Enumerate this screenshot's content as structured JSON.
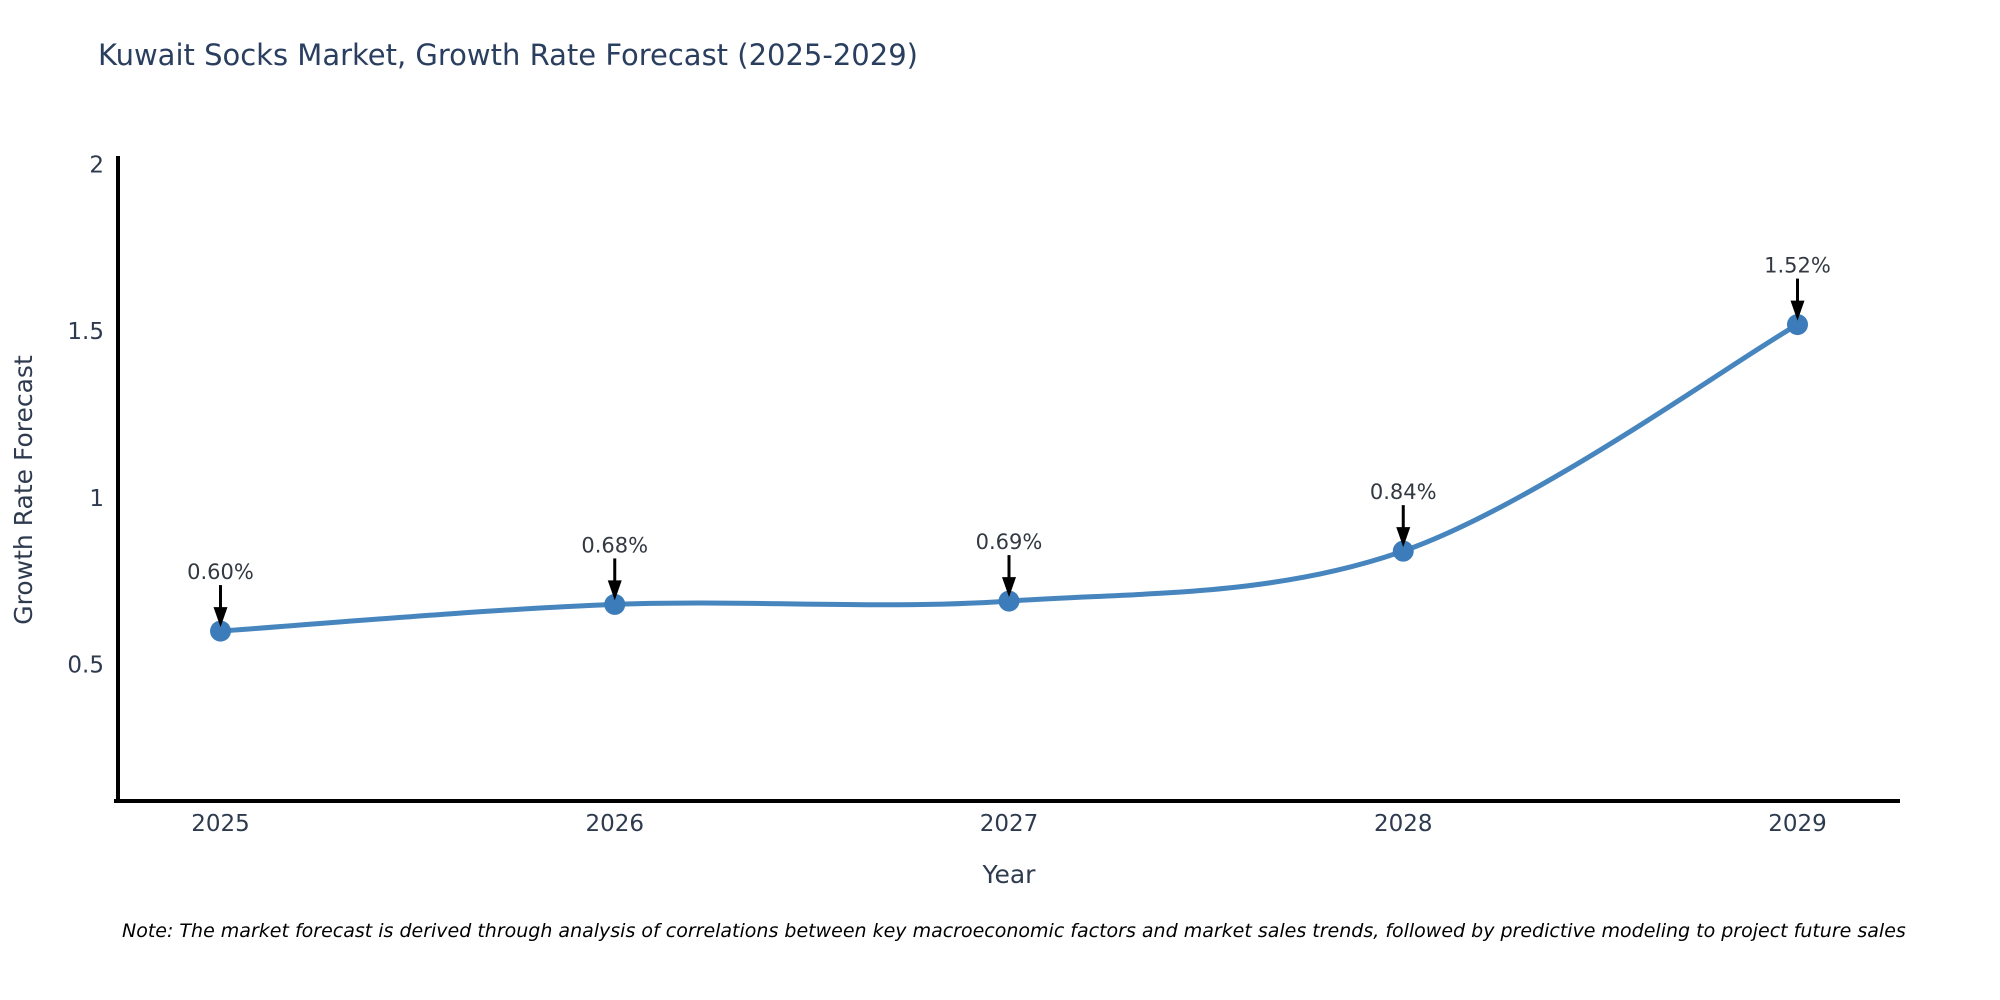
{
  "title": "Kuwait Socks Market, Growth Rate Forecast (2025-2029)",
  "note": "Note: The market forecast is derived through analysis of correlations between key macroeconomic factors and market sales trends, followed by predictive modeling to project future sales",
  "chart_data": {
    "type": "line",
    "line_shape": "spline",
    "x": [
      2025,
      2026,
      2027,
      2028,
      2029
    ],
    "x_tick_labels": [
      "2025",
      "2026",
      "2027",
      "2028",
      "2029"
    ],
    "series": [
      {
        "name": "Growth Rate Forecast",
        "values": [
          0.6,
          0.68,
          0.69,
          0.84,
          1.52
        ]
      }
    ],
    "point_labels": [
      "0.60%",
      "0.68%",
      "0.69%",
      "0.84%",
      "1.52%"
    ],
    "title": "Kuwait Socks Market, Growth Rate Forecast (2025-2029)",
    "xlabel": "Year",
    "ylabel": "Growth Rate Forecast",
    "y_ticks": [
      0.5,
      1,
      1.5,
      2
    ],
    "y_tick_labels": [
      "0.5",
      "1",
      "1.5",
      "2"
    ],
    "ylim": [
      0.09,
      2.02
    ],
    "xlim": [
      2024.74,
      2029.26
    ],
    "grid": false,
    "legend": false,
    "colors": {
      "line": "#4685bd",
      "marker": "#3d7cba",
      "axis": "#000000",
      "title_text": "#2a3f5f",
      "tick_text": "#2e3a4e",
      "annotation_text": "#333942",
      "arrow": "#000000",
      "background": "#ffffff"
    }
  }
}
